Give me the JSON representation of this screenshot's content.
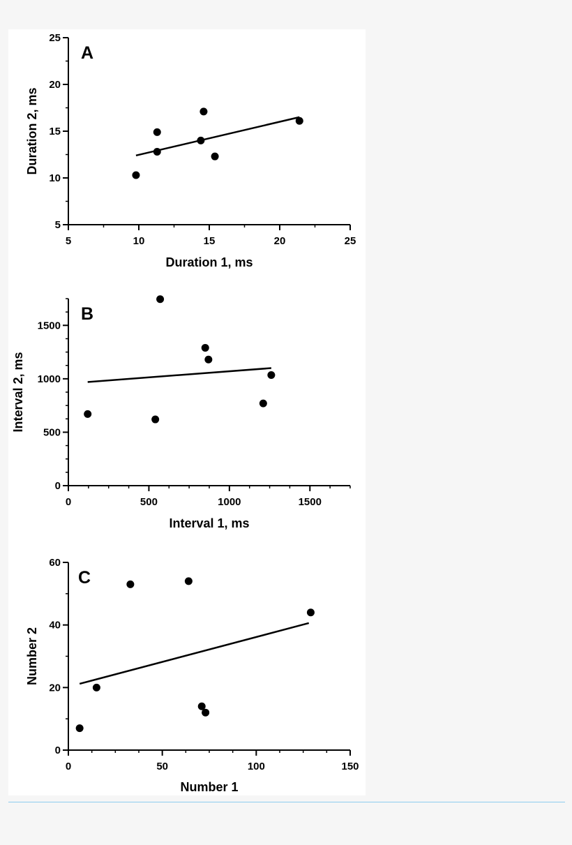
{
  "chart_data": [
    {
      "type": "scatter",
      "panel": "A",
      "xlabel": "Duration 1, ms",
      "ylabel": "Duration 2, ms",
      "xlim": [
        5,
        25
      ],
      "ylim": [
        5,
        25
      ],
      "x_ticks": [
        5,
        10,
        15,
        20,
        25
      ],
      "y_ticks": [
        5,
        10,
        15,
        20,
        25
      ],
      "x_minor_step": 2.5,
      "y_minor_step": 2.5,
      "points": [
        {
          "x": 9.8,
          "y": 10.3
        },
        {
          "x": 11.3,
          "y": 12.8
        },
        {
          "x": 11.3,
          "y": 14.9
        },
        {
          "x": 14.4,
          "y": 14.0
        },
        {
          "x": 14.6,
          "y": 17.1
        },
        {
          "x": 15.4,
          "y": 12.3
        },
        {
          "x": 21.4,
          "y": 16.1
        }
      ],
      "fit_line": {
        "x": [
          9.8,
          21.4
        ],
        "y": [
          12.4,
          16.5
        ]
      }
    },
    {
      "type": "scatter",
      "panel": "B",
      "xlabel": "Interval 1, ms",
      "ylabel": "Interval 2, ms",
      "xlim": [
        0,
        1750
      ],
      "ylim": [
        0,
        1750
      ],
      "x_ticks": [
        0,
        500,
        1000,
        1500
      ],
      "y_ticks": [
        0,
        500,
        1000,
        1500
      ],
      "x_minor_step": 125,
      "y_minor_step": 125,
      "points": [
        {
          "x": 120,
          "y": 670
        },
        {
          "x": 540,
          "y": 620
        },
        {
          "x": 570,
          "y": 1745
        },
        {
          "x": 850,
          "y": 1290
        },
        {
          "x": 870,
          "y": 1180
        },
        {
          "x": 1210,
          "y": 770
        },
        {
          "x": 1260,
          "y": 1035
        }
      ],
      "fit_line": {
        "x": [
          120,
          1260
        ],
        "y": [
          970,
          1100
        ]
      }
    },
    {
      "type": "scatter",
      "panel": "C",
      "xlabel": "Number 1",
      "ylabel": "Number 2",
      "xlim": [
        0,
        150
      ],
      "ylim": [
        0,
        60
      ],
      "x_ticks": [
        0,
        50,
        100,
        150
      ],
      "y_ticks": [
        0,
        20,
        40,
        60
      ],
      "x_minor_step": 12.5,
      "y_minor_step": 10,
      "points": [
        {
          "x": 6,
          "y": 7
        },
        {
          "x": 15,
          "y": 20
        },
        {
          "x": 33,
          "y": 53
        },
        {
          "x": 64,
          "y": 54
        },
        {
          "x": 71,
          "y": 14
        },
        {
          "x": 73,
          "y": 12
        },
        {
          "x": 129,
          "y": 44
        }
      ],
      "fit_line": {
        "x": [
          6,
          128
        ],
        "y": [
          21.2,
          40.6
        ]
      }
    }
  ]
}
